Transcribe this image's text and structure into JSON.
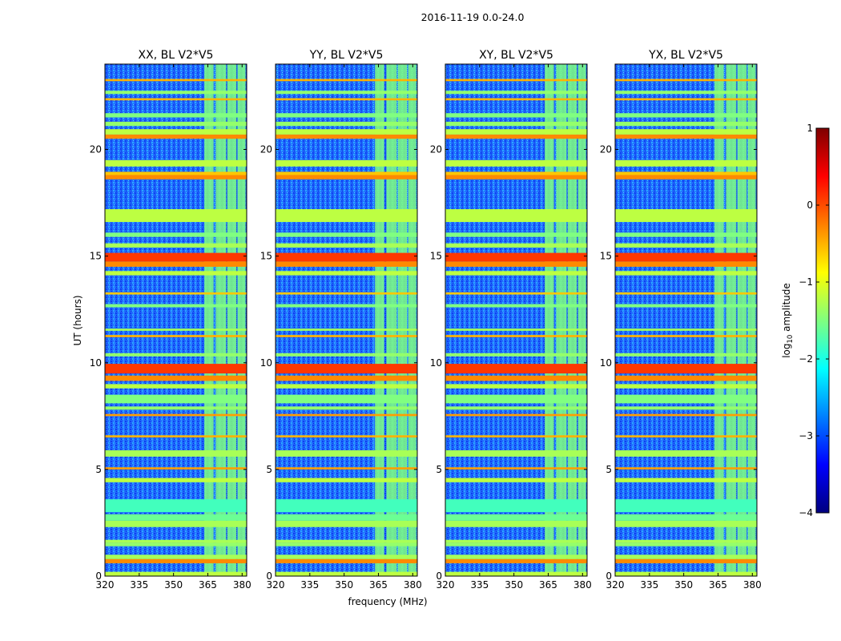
{
  "chart_data": {
    "type": "heatmap",
    "suptitle": "2016-11-19 0.0-24.0",
    "xlabel": "frequency (MHz)",
    "ylabel": "UT (hours)",
    "xlim": [
      320,
      382
    ],
    "ylim": [
      0,
      24
    ],
    "xticks": [
      320,
      335,
      350,
      365,
      380
    ],
    "yticks": [
      0,
      5,
      10,
      15,
      20
    ],
    "xtick_labels": [
      "320",
      "335",
      "350",
      "365",
      "380"
    ],
    "ytick_labels": [
      "0",
      "5",
      "10",
      "15",
      "20"
    ],
    "colorbar": {
      "label": "log10 amplitude",
      "label_parts": [
        "log",
        "10",
        " amplitude"
      ],
      "range": [
        -4,
        1
      ],
      "ticks": [
        -4,
        -3,
        -2,
        -1,
        0,
        1
      ],
      "tick_labels": [
        "−4",
        "−3",
        "−2",
        "−1",
        "0",
        "1"
      ],
      "colormap": "jet"
    },
    "panels": [
      {
        "title": "XX, BL V2*V5"
      },
      {
        "title": "YY, BL V2*V5"
      },
      {
        "title": "XY, BL V2*V5"
      },
      {
        "title": "YX, BL V2*V5"
      }
    ],
    "rfi_bands_mhz": [
      [
        363.5,
        367.5
      ],
      [
        368.5,
        373
      ],
      [
        373.5,
        377.5
      ],
      [
        378,
        381.5
      ]
    ],
    "features": [
      {
        "ut": [
          0.0,
          0.2
        ],
        "level": -1.2
      },
      {
        "ut": [
          0.6,
          0.8
        ],
        "level": -0.3
      },
      {
        "ut": [
          0.8,
          1.0
        ],
        "level": -1.3
      },
      {
        "ut": [
          1.4,
          1.55
        ],
        "level": -1.4
      },
      {
        "ut": [
          1.55,
          1.7
        ],
        "level": -1.3
      },
      {
        "ut": [
          2.3,
          2.6
        ],
        "level": -1.3
      },
      {
        "ut": [
          2.6,
          2.9
        ],
        "level": -1.6
      },
      {
        "ut": [
          3.0,
          3.6
        ],
        "level": -1.8
      },
      {
        "ut": [
          4.4,
          4.6
        ],
        "level": -1.2
      },
      {
        "ut": [
          5.0,
          5.1
        ],
        "level": -0.4
      },
      {
        "ut": [
          5.6,
          5.9
        ],
        "level": -1.3
      },
      {
        "ut": [
          6.5,
          6.6
        ],
        "level": -0.5
      },
      {
        "ut": [
          7.5,
          7.6
        ],
        "level": -0.4
      },
      {
        "ut": [
          7.8,
          7.95
        ],
        "level": -1.4
      },
      {
        "ut": [
          8.1,
          8.5
        ],
        "level": -1.5
      },
      {
        "ut": [
          8.8,
          9.0
        ],
        "level": -1.2
      },
      {
        "ut": [
          9.15,
          9.4
        ],
        "level": -0.3
      },
      {
        "ut": [
          9.5,
          9.95
        ],
        "level": 0.1
      },
      {
        "ut": [
          10.3,
          10.45
        ],
        "level": -1.4
      },
      {
        "ut": [
          11.2,
          11.3
        ],
        "level": -0.5
      },
      {
        "ut": [
          11.5,
          11.6
        ],
        "level": -1.3
      },
      {
        "ut": [
          12.6,
          12.75
        ],
        "level": -1.5
      },
      {
        "ut": [
          13.2,
          13.3
        ],
        "level": -0.6
      },
      {
        "ut": [
          14.1,
          14.3
        ],
        "level": -1.2
      },
      {
        "ut": [
          14.5,
          14.75
        ],
        "level": -0.3
      },
      {
        "ut": [
          14.75,
          15.15
        ],
        "level": 0.1
      },
      {
        "ut": [
          15.4,
          15.6
        ],
        "level": -1.3
      },
      {
        "ut": [
          15.9,
          16.1
        ],
        "level": -1.5
      },
      {
        "ut": [
          16.6,
          17.2
        ],
        "level": -1.2
      },
      {
        "ut": [
          18.6,
          18.8
        ],
        "level": -0.3
      },
      {
        "ut": [
          18.8,
          18.95
        ],
        "level": -0.6
      },
      {
        "ut": [
          19.2,
          19.5
        ],
        "level": -1.2
      },
      {
        "ut": [
          20.5,
          20.7
        ],
        "level": -0.3
      },
      {
        "ut": [
          20.7,
          20.95
        ],
        "level": -1.2
      },
      {
        "ut": [
          21.1,
          21.3
        ],
        "level": -1.4
      },
      {
        "ut": [
          21.5,
          21.7
        ],
        "level": -1.5
      },
      {
        "ut": [
          22.3,
          22.4
        ],
        "level": -0.5
      },
      {
        "ut": [
          22.6,
          22.75
        ],
        "level": -1.4
      },
      {
        "ut": [
          23.2,
          23.3
        ],
        "level": -0.5
      }
    ]
  }
}
